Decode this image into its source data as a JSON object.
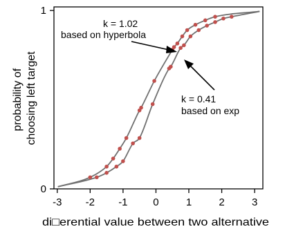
{
  "chart_data": {
    "type": "line",
    "title": "",
    "xlabel": "di□erential value between two alternative",
    "ylabel_lines": [
      "probability of",
      "choosing left target"
    ],
    "xlim": [
      -3.1,
      3.25
    ],
    "ylim": [
      0,
      1.02
    ],
    "x_ticks": [
      -3,
      -2,
      -1,
      0,
      1,
      2,
      3
    ],
    "x_tick_labels": [
      "-3",
      "-2",
      "-1",
      "0",
      "1",
      "2",
      "3"
    ],
    "y_ticks": [
      0,
      1
    ],
    "y_tick_labels": [
      "0",
      "1"
    ],
    "grid": false,
    "legend": "none",
    "series": [
      {
        "curve_color": "#707070",
        "point_color": "#c0504d",
        "x": [
          -2.0,
          -1.5,
          -1.3,
          -1.1,
          -0.9,
          -0.5,
          -0.45,
          -0.05,
          0.5,
          0.55,
          0.65,
          0.8,
          0.95,
          1.2,
          1.5,
          1.8
        ],
        "y": [
          0.065,
          0.125,
          0.17,
          0.225,
          0.285,
          0.44,
          0.455,
          0.605,
          0.78,
          0.795,
          0.815,
          0.855,
          0.89,
          0.92,
          0.945,
          0.965
        ]
      },
      {
        "curve_color": "#707070",
        "point_color": "#c0504d",
        "x": [
          -1.8,
          -1.5,
          -1.2,
          -1.0,
          -0.7,
          -0.5,
          -0.1,
          0.4,
          0.45,
          0.75,
          0.85,
          1.05,
          1.3,
          1.55,
          1.8,
          2.05,
          2.3
        ],
        "y": [
          0.065,
          0.09,
          0.125,
          0.155,
          0.255,
          0.285,
          0.475,
          0.675,
          0.685,
          0.79,
          0.805,
          0.855,
          0.89,
          0.915,
          0.935,
          0.955,
          0.965
        ]
      }
    ],
    "annotations": [
      {
        "lines": [
          "k = 1.02",
          "based on hyperbola"
        ],
        "target_x": 0.55,
        "target_y": 0.795
      },
      {
        "lines": [
          "k = 0.41",
          "based on exp"
        ],
        "target_x": 0.85,
        "target_y": 0.76
      }
    ]
  }
}
